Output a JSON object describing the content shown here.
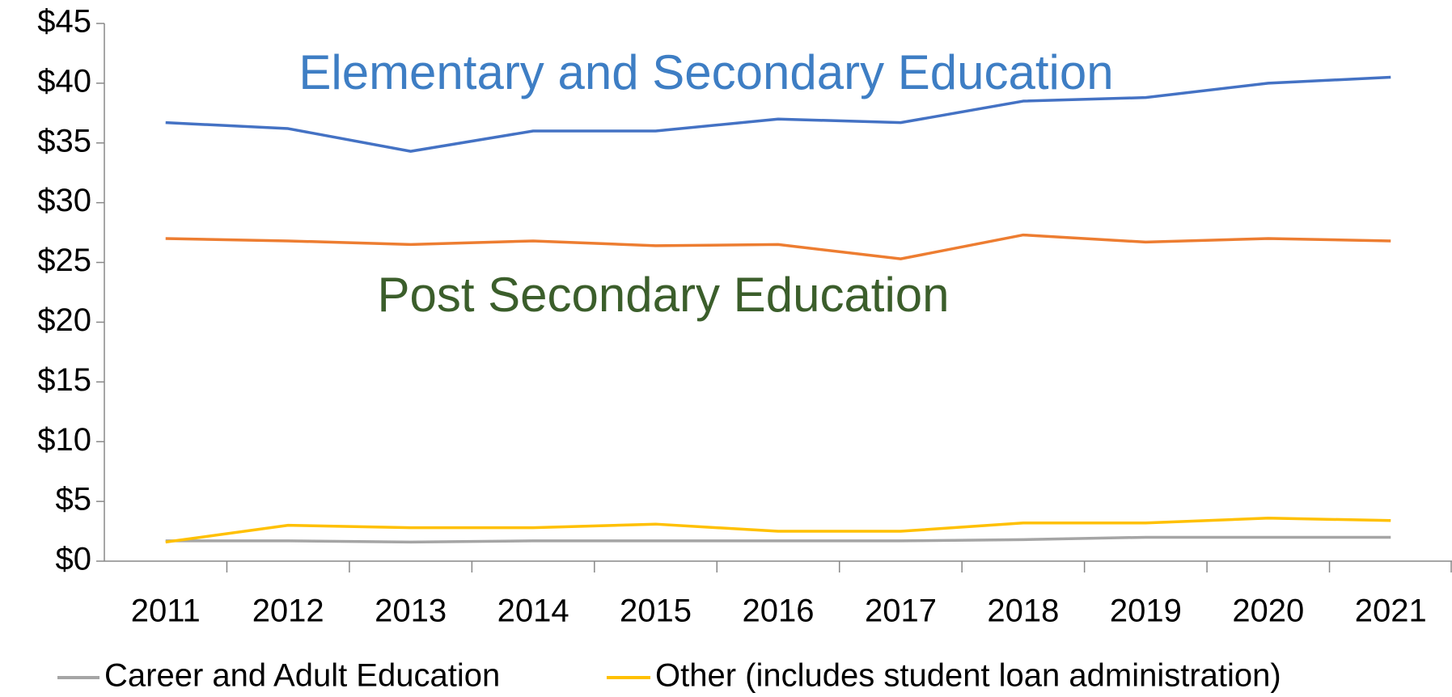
{
  "chart_data": {
    "type": "line",
    "categories": [
      "2011",
      "2012",
      "2013",
      "2014",
      "2015",
      "2016",
      "2017",
      "2018",
      "2019",
      "2020",
      "2021"
    ],
    "series": [
      {
        "name": "Elementary and Secondary Education",
        "color": "#4472c4",
        "label_color": "#3e7ec4",
        "values": [
          36.7,
          36.2,
          34.3,
          36.0,
          36.0,
          37.0,
          36.7,
          38.5,
          38.8,
          40.0,
          40.5
        ]
      },
      {
        "name": "Post Secondary Education",
        "color": "#ed7d31",
        "label_color": "#3b5e2b",
        "values": [
          27.0,
          26.8,
          26.5,
          26.8,
          26.4,
          26.5,
          25.3,
          27.3,
          26.7,
          27.0,
          26.8
        ]
      },
      {
        "name": "Career and Adult Education",
        "color": "#a5a5a5",
        "values": [
          1.7,
          1.7,
          1.6,
          1.7,
          1.7,
          1.7,
          1.7,
          1.8,
          2.0,
          2.0,
          2.0
        ]
      },
      {
        "name": "Other (includes student loan administration)",
        "color": "#ffc000",
        "values": [
          1.6,
          3.0,
          2.8,
          2.8,
          3.1,
          2.5,
          2.5,
          3.2,
          3.2,
          3.6,
          3.4
        ]
      }
    ],
    "ylim": [
      0,
      45
    ],
    "yticks": [
      {
        "value": 0,
        "label": "$0"
      },
      {
        "value": 5,
        "label": "$5"
      },
      {
        "value": 10,
        "label": "$10"
      },
      {
        "value": 15,
        "label": "$15"
      },
      {
        "value": 20,
        "label": "$20"
      },
      {
        "value": 25,
        "label": "$25"
      },
      {
        "value": 30,
        "label": "$30"
      },
      {
        "value": 35,
        "label": "$35"
      },
      {
        "value": 40,
        "label": "$40"
      },
      {
        "value": 45,
        "label": "$45"
      }
    ],
    "grid": false,
    "legend": "bottom"
  }
}
